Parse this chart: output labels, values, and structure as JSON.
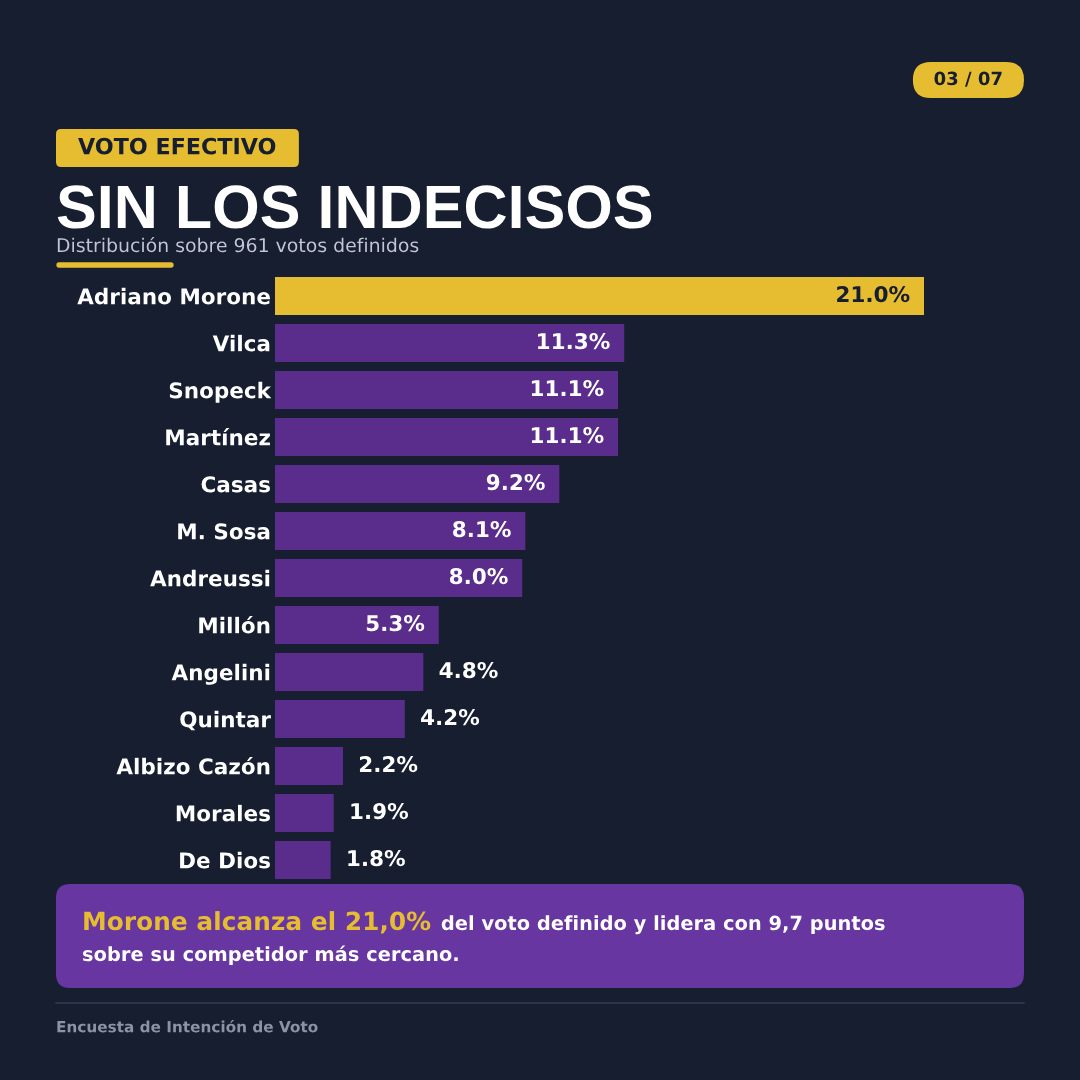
{
  "chart_data": {
    "type": "bar",
    "orientation": "horizontal",
    "title": "SIN LOS INDECISOS",
    "subtitle": "Distribución sobre 961 votos definidos",
    "categories": [
      "Adriano Morone",
      "Vilca",
      "Snopeck",
      "Martínez",
      "Casas",
      "M. Sosa",
      "Andreussi",
      "Millón",
      "Angelini",
      "Quintar",
      "Albizo Cazón",
      "Morales",
      "De Dios"
    ],
    "values": [
      21.0,
      11.3,
      11.1,
      11.1,
      9.2,
      8.1,
      8.0,
      5.3,
      4.8,
      4.2,
      2.2,
      1.9,
      1.8
    ],
    "colors": [
      "#e6bd30",
      "#5a2d8c",
      "#5a2d8c",
      "#5a2d8c",
      "#5a2d8c",
      "#5a2d8c",
      "#5a2d8c",
      "#5a2d8c",
      "#5a2d8c",
      "#5a2d8c",
      "#5a2d8c",
      "#5a2d8c",
      "#5a2d8c"
    ],
    "value_labels": [
      "21.0%",
      "11.3%",
      "11.1%",
      "11.1%",
      "9.2%",
      "8.1%",
      "8.0%",
      "5.3%",
      "4.8%",
      "4.2%",
      "2.2%",
      "1.9%",
      "1.8%"
    ],
    "tick_labels": "y",
    "annotations": [
      "03 / 07",
      "VOTO EFECTIVO",
      "Morone alcanza el 21,0%",
      "del voto definido y lidera con 9,7 puntos",
      "sobre su competidor más cercano.",
      "Encuesta de Intención de Voto"
    ]
  }
}
